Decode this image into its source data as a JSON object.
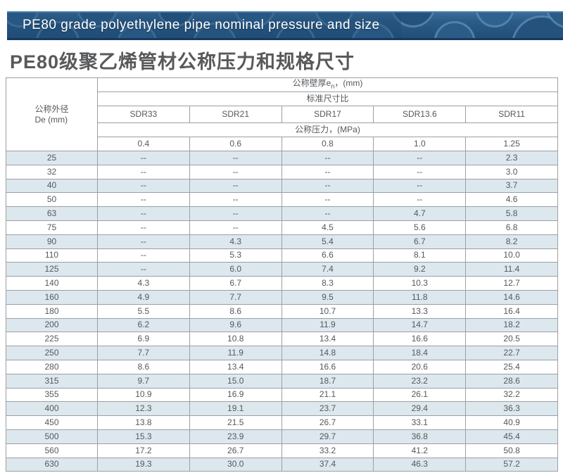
{
  "banner": {
    "title": "PE80 grade polyethylene pipe nominal pressure and size"
  },
  "page_title": "PE80级聚乙烯管材公称压力和规格尺寸",
  "colors": {
    "banner_bg": "#2b5b87",
    "banner_ring": "#5d8fb8",
    "banner_border_bottom": "#16395f",
    "row_stripe": "#dce8ee",
    "table_border": "#9c9fa3",
    "text_gray": "#58595b"
  },
  "table": {
    "corner_header_line1": "公称外径",
    "corner_header_line2": "De (mm)",
    "wall_thickness_header_prefix": "公称壁厚e",
    "wall_thickness_header_sub": "n",
    "wall_thickness_header_suffix": "，(mm)",
    "sdr_group_header": "标准尺寸比",
    "sdr_columns": [
      "SDR33",
      "SDR21",
      "SDR17",
      "SDR13.6",
      "SDR11"
    ],
    "pressure_group_header": "公称压力，(MPa)",
    "pressure_values": [
      "0.4",
      "0.6",
      "0.8",
      "1.0",
      "1.25"
    ],
    "rows": [
      {
        "de": "25",
        "values": [
          "--",
          "--",
          "--",
          "--",
          "2.3"
        ]
      },
      {
        "de": "32",
        "values": [
          "--",
          "--",
          "--",
          "--",
          "3.0"
        ]
      },
      {
        "de": "40",
        "values": [
          "--",
          "--",
          "--",
          "--",
          "3.7"
        ]
      },
      {
        "de": "50",
        "values": [
          "--",
          "--",
          "--",
          "--",
          "4.6"
        ]
      },
      {
        "de": "63",
        "values": [
          "--",
          "--",
          "--",
          "4.7",
          "5.8"
        ]
      },
      {
        "de": "75",
        "values": [
          "--",
          "--",
          "4.5",
          "5.6",
          "6.8"
        ]
      },
      {
        "de": "90",
        "values": [
          "--",
          "4.3",
          "5.4",
          "6.7",
          "8.2"
        ]
      },
      {
        "de": "110",
        "values": [
          "--",
          "5.3",
          "6.6",
          "8.1",
          "10.0"
        ]
      },
      {
        "de": "125",
        "values": [
          "--",
          "6.0",
          "7.4",
          "9.2",
          "11.4"
        ]
      },
      {
        "de": "140",
        "values": [
          "4.3",
          "6.7",
          "8.3",
          "10.3",
          "12.7"
        ]
      },
      {
        "de": "160",
        "values": [
          "4.9",
          "7.7",
          "9.5",
          "11.8",
          "14.6"
        ]
      },
      {
        "de": "180",
        "values": [
          "5.5",
          "8.6",
          "10.7",
          "13.3",
          "16.4"
        ]
      },
      {
        "de": "200",
        "values": [
          "6.2",
          "9.6",
          "11.9",
          "14.7",
          "18.2"
        ]
      },
      {
        "de": "225",
        "values": [
          "6.9",
          "10.8",
          "13.4",
          "16.6",
          "20.5"
        ]
      },
      {
        "de": "250",
        "values": [
          "7.7",
          "11.9",
          "14.8",
          "18.4",
          "22.7"
        ]
      },
      {
        "de": "280",
        "values": [
          "8.6",
          "13.4",
          "16.6",
          "20.6",
          "25.4"
        ]
      },
      {
        "de": "315",
        "values": [
          "9.7",
          "15.0",
          "18.7",
          "23.2",
          "28.6"
        ]
      },
      {
        "de": "355",
        "values": [
          "10.9",
          "16.9",
          "21.1",
          "26.1",
          "32.2"
        ]
      },
      {
        "de": "400",
        "values": [
          "12.3",
          "19.1",
          "23.7",
          "29.4",
          "36.3"
        ]
      },
      {
        "de": "450",
        "values": [
          "13.8",
          "21.5",
          "26.7",
          "33.1",
          "40.9"
        ]
      },
      {
        "de": "500",
        "values": [
          "15.3",
          "23.9",
          "29.7",
          "36.8",
          "45.4"
        ]
      },
      {
        "de": "560",
        "values": [
          "17.2",
          "26.7",
          "33.2",
          "41.2",
          "50.8"
        ]
      },
      {
        "de": "630",
        "values": [
          "19.3",
          "30.0",
          "37.4",
          "46.3",
          "57.2"
        ]
      }
    ]
  }
}
